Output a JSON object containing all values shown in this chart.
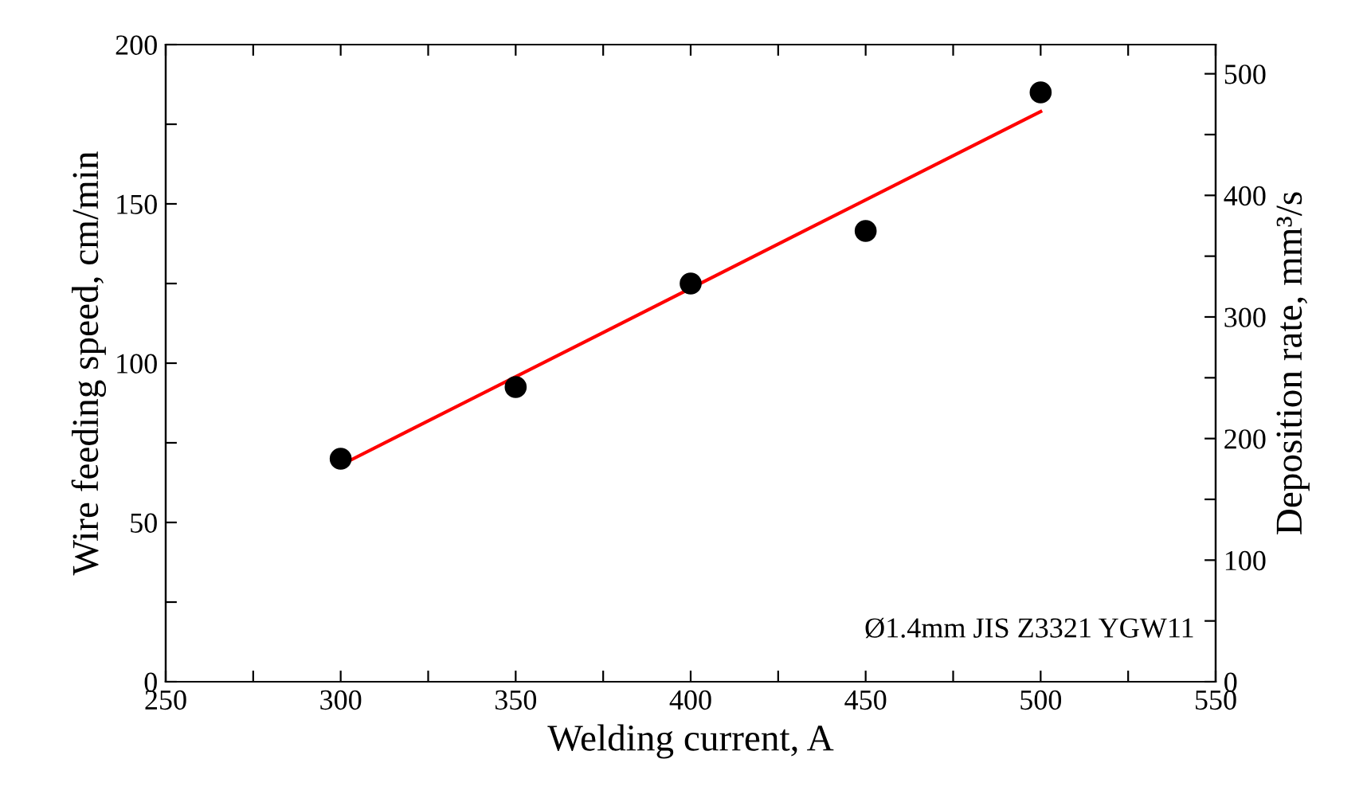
{
  "chart_data": {
    "type": "scatter",
    "xlabel": "Welding current, A",
    "ylabel": "Wire feeding speed, cm/min",
    "y2label": "Deposition rate, mm³/s",
    "series": [
      {
        "color": "#000000",
        "x": [
          300,
          350,
          400,
          450,
          500
        ],
        "values": [
          70,
          92.5,
          125,
          141.5,
          185
        ],
        "marker": "circle"
      },
      {
        "type": "line",
        "color": "#ff0000",
        "x": [
          300,
          500
        ],
        "values": [
          68,
          179
        ],
        "marker": "none",
        "line_style": "solid"
      }
    ],
    "xlim": [
      250,
      550
    ],
    "xticks": [
      250,
      {
        "value": 275,
        "label": null
      },
      300,
      {
        "value": 325,
        "label": null
      },
      350,
      {
        "value": 375,
        "label": null
      },
      400,
      {
        "value": 425,
        "label": null
      },
      450,
      {
        "value": 475,
        "label": null
      },
      500,
      {
        "value": 525,
        "label": null
      },
      550
    ],
    "ylim": [
      0,
      200
    ],
    "yticks": [
      0,
      {
        "value": 25,
        "label": null
      },
      50,
      {
        "value": 75,
        "label": null
      },
      100,
      {
        "value": 125,
        "label": null
      },
      150,
      {
        "value": 175,
        "label": null
      },
      200
    ],
    "y2lim": [
      0,
      524
    ],
    "y2ticks": [
      0,
      {
        "value": 50,
        "label": null
      },
      100,
      {
        "value": 150,
        "label": null
      },
      200,
      {
        "value": 250,
        "label": null
      },
      300,
      {
        "value": 350,
        "label": null
      },
      400,
      {
        "value": 450,
        "label": null
      },
      500
    ],
    "annotations": [
      "Ø1.4mm JIS Z3321 YGW11"
    ],
    "grid": false,
    "legend": false
  }
}
